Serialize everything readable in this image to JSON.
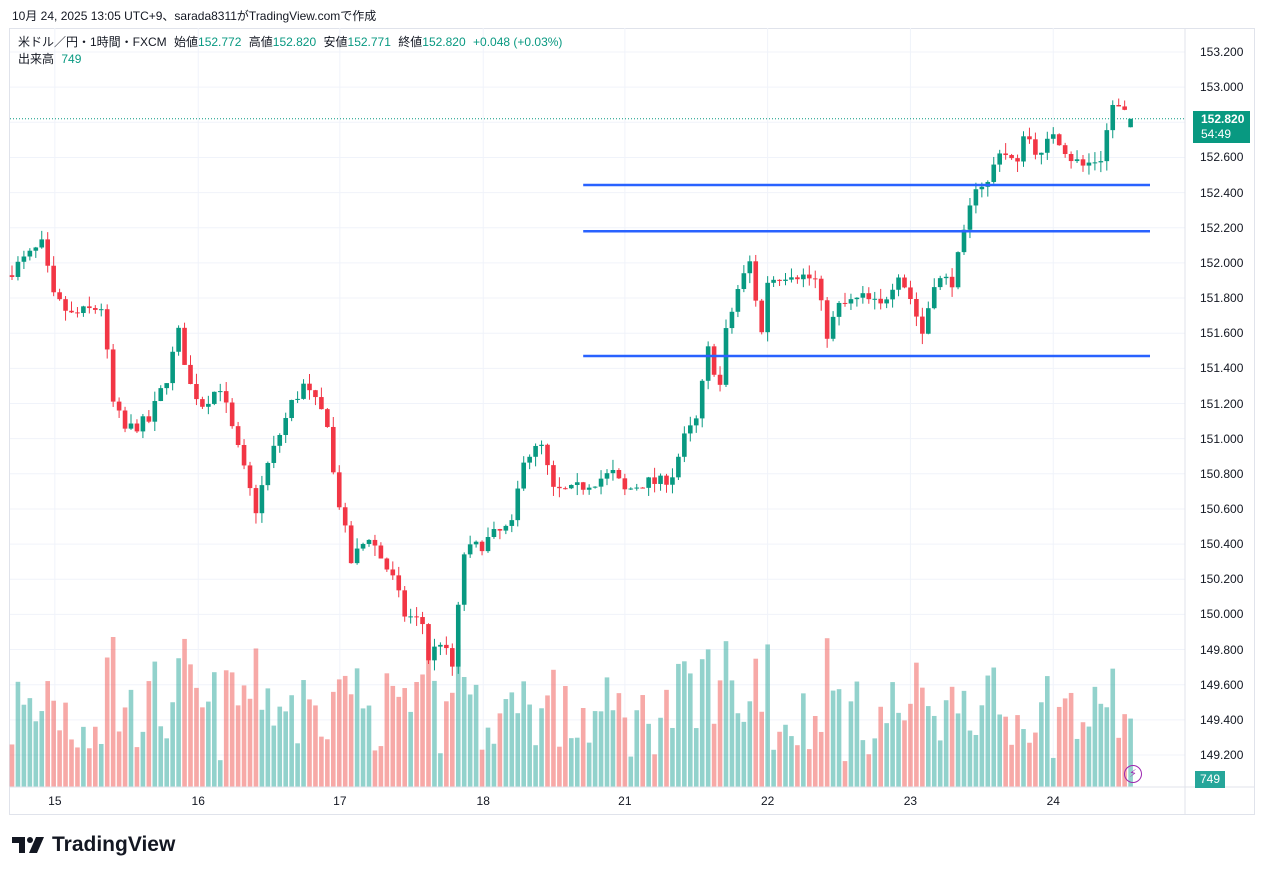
{
  "caption": "10月 24, 2025 13:05 UTC+9、sarada8311がTradingView.comで作成",
  "legend": {
    "symbol": "米ドル／円・1時間・FXCM",
    "open_label": "始値",
    "open": "152.772",
    "high_label": "高値",
    "high": "152.820",
    "low_label": "安値",
    "low": "152.771",
    "close_label": "終値",
    "close": "152.820",
    "change": "+0.048 (+0.03%)",
    "volume_label": "出来高",
    "volume": "749"
  },
  "last_price": {
    "price": "152.820",
    "countdown": "54:49",
    "volume": "749"
  },
  "logo": "TradingView",
  "colors": {
    "up": "#089981",
    "down": "#f23645",
    "vol_up": "#26a69a",
    "vol_down": "#ef5350",
    "hline": "#2962ff",
    "grid": "#f0f3fa"
  },
  "chart_data": {
    "type": "candlestick",
    "title": "USD/JPY 1H FXCM",
    "ylim": [
      149.05,
      153.4
    ],
    "price_ticks": [
      "153.200",
      "153.000",
      "152.800",
      "152.600",
      "152.400",
      "152.200",
      "152.000",
      "151.800",
      "151.600",
      "151.400",
      "151.200",
      "151.000",
      "150.800",
      "150.600",
      "150.400",
      "150.200",
      "150.000",
      "149.800",
      "149.600",
      "149.400",
      "149.200"
    ],
    "time_ticks": [
      {
        "label": "15",
        "bar": 7.2
      },
      {
        "label": "16",
        "bar": 31.3
      },
      {
        "label": "17",
        "bar": 55.1
      },
      {
        "label": "18",
        "bar": 79.2
      },
      {
        "label": "21",
        "bar": 103
      },
      {
        "label": "22",
        "bar": 127
      },
      {
        "label": "23",
        "bar": 151
      },
      {
        "label": "24",
        "bar": 175
      }
    ],
    "bar_count": 189,
    "close_keypoints": [
      [
        0,
        151.96
      ],
      [
        5,
        152.1
      ],
      [
        7,
        151.8
      ],
      [
        10,
        151.7
      ],
      [
        15,
        151.75
      ],
      [
        17,
        151.2
      ],
      [
        19,
        151.05
      ],
      [
        23,
        151.1
      ],
      [
        26,
        151.35
      ],
      [
        28,
        151.6
      ],
      [
        30,
        151.3
      ],
      [
        32,
        151.2
      ],
      [
        35,
        151.3
      ],
      [
        37,
        151.05
      ],
      [
        40,
        150.7
      ],
      [
        41,
        150.6
      ],
      [
        43,
        150.85
      ],
      [
        47,
        151.2
      ],
      [
        49,
        151.3
      ],
      [
        53,
        151.1
      ],
      [
        54,
        150.8
      ],
      [
        57,
        150.3
      ],
      [
        60,
        150.45
      ],
      [
        64,
        150.2
      ],
      [
        66,
        150.0
      ],
      [
        69,
        149.95
      ],
      [
        70,
        149.75
      ],
      [
        72,
        149.85
      ],
      [
        74,
        149.7
      ],
      [
        76,
        150.35
      ],
      [
        79,
        150.4
      ],
      [
        81,
        150.45
      ],
      [
        84,
        150.5
      ],
      [
        86,
        150.9
      ],
      [
        89,
        150.95
      ],
      [
        91,
        150.7
      ],
      [
        94,
        150.7
      ],
      [
        97,
        150.75
      ],
      [
        101,
        150.8
      ],
      [
        103,
        150.7
      ],
      [
        106,
        150.75
      ],
      [
        109,
        150.75
      ],
      [
        111,
        150.8
      ],
      [
        113,
        151.0
      ],
      [
        115,
        151.1
      ],
      [
        117,
        151.5
      ],
      [
        119,
        151.3
      ],
      [
        120,
        151.6
      ],
      [
        122,
        151.85
      ],
      [
        124,
        152.0
      ],
      [
        126,
        151.6
      ],
      [
        127,
        151.9
      ],
      [
        131,
        151.95
      ],
      [
        135,
        151.9
      ],
      [
        137,
        151.6
      ],
      [
        139,
        151.75
      ],
      [
        143,
        151.8
      ],
      [
        146,
        151.75
      ],
      [
        149,
        151.95
      ],
      [
        151,
        151.8
      ],
      [
        153,
        151.6
      ],
      [
        155,
        151.9
      ],
      [
        158,
        151.9
      ],
      [
        160,
        152.15
      ],
      [
        162,
        152.45
      ],
      [
        164,
        152.45
      ],
      [
        166,
        152.65
      ],
      [
        169,
        152.55
      ],
      [
        170,
        152.75
      ],
      [
        173,
        152.6
      ],
      [
        175,
        152.75
      ],
      [
        178,
        152.6
      ],
      [
        180,
        152.55
      ],
      [
        183,
        152.6
      ],
      [
        185,
        152.9
      ],
      [
        187,
        152.85
      ],
      [
        188,
        152.82
      ]
    ],
    "last_bar": {
      "open": 152.772,
      "high": 152.82,
      "low": 152.771,
      "close": 152.82,
      "volume": 749
    },
    "horizontal_lines": [
      {
        "price": 152.443,
        "from_bar": 96
      },
      {
        "price": 152.18,
        "from_bar": 96
      },
      {
        "price": 151.47,
        "from_bar": 96
      }
    ]
  }
}
